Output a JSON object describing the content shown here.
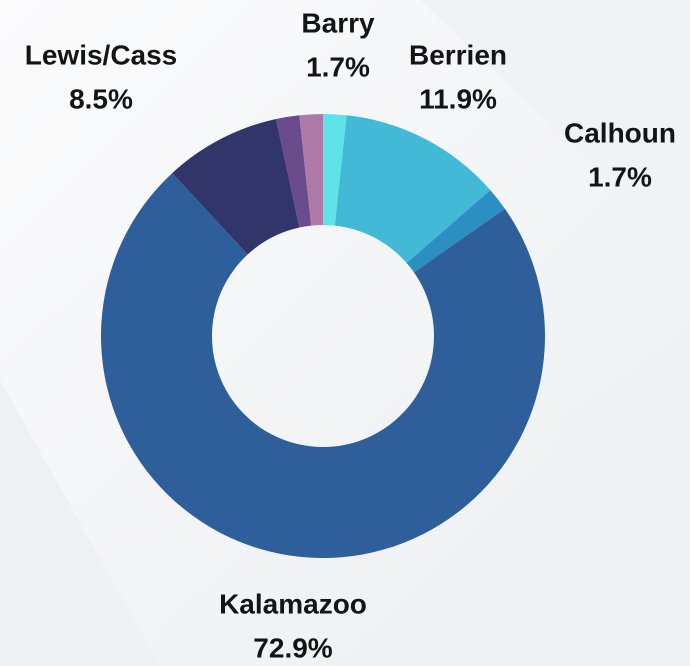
{
  "chart_data": {
    "type": "donut",
    "categories": [
      "Barry",
      "Berrien",
      "Calhoun",
      "Kalamazoo",
      "Lewis/Cass",
      null,
      null
    ],
    "values": [
      1.7,
      11.9,
      1.7,
      72.9,
      8.5,
      1.7,
      1.7
    ],
    "value_labels": [
      "1.7%",
      "11.9%",
      "1.7%",
      "72.9%",
      "8.5%",
      null,
      null
    ],
    "colors": [
      "#5fe3e8",
      "#42b9d7",
      "#2c8fc2",
      "#2f5f9a",
      "#323569",
      "#6a4b8c",
      "#b07aa8"
    ]
  }
}
